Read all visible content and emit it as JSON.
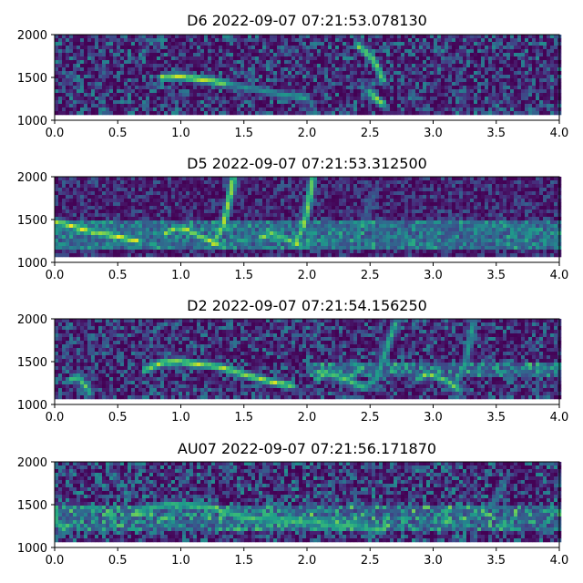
{
  "figure": {
    "background": "#ffffff"
  },
  "chart_data": [
    {
      "type": "heatmap",
      "title": "D6 2022-09-07 07:21:53.078130",
      "colormap": "viridis",
      "xlim": [
        0.0,
        4.0
      ],
      "ylim": [
        1000,
        2000
      ],
      "data_extent_y": [
        1100,
        2000
      ],
      "x_ticks": [
        0.0,
        0.5,
        1.0,
        1.5,
        2.0,
        2.5,
        3.0,
        3.5,
        4.0
      ],
      "x_tick_labels": [
        "0.0",
        "0.5",
        "1.0",
        "1.5",
        "2.0",
        "2.5",
        "3.0",
        "3.5",
        "4.0"
      ],
      "y_ticks": [
        1000,
        1500,
        2000
      ],
      "y_tick_labels": [
        "1000",
        "1500",
        "2000"
      ],
      "noise_level": 0.3,
      "band": null,
      "curves": [
        {
          "points": [
            [
              0.85,
              1500
            ],
            [
              1.0,
              1510
            ],
            [
              1.2,
              1470
            ],
            [
              1.35,
              1430
            ]
          ],
          "intensity": 0.95
        },
        {
          "points": [
            [
              1.35,
              1430
            ],
            [
              1.7,
              1330
            ],
            [
              2.0,
              1250
            ]
          ],
          "intensity": 0.55
        },
        {
          "points": [
            [
              2.4,
              1880
            ],
            [
              2.52,
              1720
            ],
            [
              2.58,
              1550
            ],
            [
              2.6,
              1470
            ]
          ],
          "intensity": 0.85
        },
        {
          "points": [
            [
              2.5,
              1320
            ],
            [
              2.55,
              1250
            ],
            [
              2.6,
              1190
            ]
          ],
          "intensity": 0.9
        }
      ]
    },
    {
      "type": "heatmap",
      "title": "D5 2022-09-07 07:21:53.312500",
      "colormap": "viridis",
      "xlim": [
        0.0,
        4.0
      ],
      "ylim": [
        1000,
        2000
      ],
      "data_extent_y": [
        1100,
        2000
      ],
      "x_ticks": [
        0.0,
        0.5,
        1.0,
        1.5,
        2.0,
        2.5,
        3.0,
        3.5,
        4.0
      ],
      "x_tick_labels": [
        "0.0",
        "0.5",
        "1.0",
        "1.5",
        "2.0",
        "2.5",
        "3.0",
        "3.5",
        "4.0"
      ],
      "y_ticks": [
        1000,
        1500,
        2000
      ],
      "y_tick_labels": [
        "1000",
        "1500",
        "2000"
      ],
      "noise_level": 0.2,
      "band": {
        "x": [
          0.0,
          4.0
        ],
        "y": [
          1150,
          1500
        ],
        "intensity": 0.3
      },
      "curves": [
        {
          "points": [
            [
              0.0,
              1470
            ],
            [
              0.1,
              1440
            ],
            [
              0.25,
              1370
            ],
            [
              0.5,
              1300
            ],
            [
              0.65,
              1250
            ]
          ],
          "intensity": 0.95
        },
        {
          "points": [
            [
              0.88,
              1330
            ],
            [
              0.95,
              1400
            ],
            [
              1.05,
              1380
            ],
            [
              1.2,
              1270
            ],
            [
              1.3,
              1210
            ]
          ],
          "intensity": 0.9
        },
        {
          "points": [
            [
              1.25,
              1210
            ],
            [
              1.33,
              1400
            ],
            [
              1.38,
              1700
            ],
            [
              1.42,
              2000
            ]
          ],
          "intensity": 0.9
        },
        {
          "points": [
            [
              1.63,
              1280
            ],
            [
              1.72,
              1340
            ],
            [
              1.85,
              1260
            ],
            [
              1.95,
              1190
            ]
          ],
          "intensity": 0.85
        },
        {
          "points": [
            [
              1.9,
              1200
            ],
            [
              1.98,
              1450
            ],
            [
              2.02,
              1750
            ],
            [
              2.05,
              2000
            ]
          ],
          "intensity": 0.85
        },
        {
          "points": [
            [
              2.45,
              1500
            ],
            [
              2.5,
              1700
            ],
            [
              2.55,
              1850
            ]
          ],
          "intensity": 0.35
        },
        {
          "points": [
            [
              3.25,
              1200
            ],
            [
              3.28,
              1400
            ],
            [
              3.3,
              1500
            ]
          ],
          "intensity": 0.35
        }
      ]
    },
    {
      "type": "heatmap",
      "title": "D2 2022-09-07 07:21:54.156250",
      "colormap": "viridis",
      "xlim": [
        0.0,
        4.0
      ],
      "ylim": [
        1000,
        2000
      ],
      "data_extent_y": [
        1100,
        2000
      ],
      "x_ticks": [
        0.0,
        0.5,
        1.0,
        1.5,
        2.0,
        2.5,
        3.0,
        3.5,
        4.0
      ],
      "x_tick_labels": [
        "0.0",
        "0.5",
        "1.0",
        "1.5",
        "2.0",
        "2.5",
        "3.0",
        "3.5",
        "4.0"
      ],
      "y_ticks": [
        1000,
        1500,
        2000
      ],
      "y_tick_labels": [
        "1000",
        "1500",
        "2000"
      ],
      "noise_level": 0.28,
      "band": {
        "x": [
          2.0,
          4.0
        ],
        "y": [
          1300,
          1500
        ],
        "intensity": 0.25
      },
      "curves": [
        {
          "points": [
            [
              0.12,
              1280
            ],
            [
              0.18,
              1330
            ],
            [
              0.25,
              1200
            ],
            [
              0.28,
              1130
            ]
          ],
          "intensity": 0.75
        },
        {
          "points": [
            [
              0.72,
              1400
            ],
            [
              0.85,
              1490
            ],
            [
              1.0,
              1500
            ],
            [
              1.3,
              1440
            ],
            [
              1.5,
              1350
            ],
            [
              1.7,
              1270
            ],
            [
              1.88,
              1220
            ]
          ],
          "intensity": 0.9
        },
        {
          "points": [
            [
              2.08,
              1300
            ],
            [
              2.15,
              1370
            ],
            [
              2.3,
              1300
            ],
            [
              2.45,
              1200
            ]
          ],
          "intensity": 0.8
        },
        {
          "points": [
            [
              2.45,
              1200
            ],
            [
              2.55,
              1300
            ],
            [
              2.62,
              1600
            ],
            [
              2.7,
              1950
            ]
          ],
          "intensity": 0.65
        },
        {
          "points": [
            [
              2.88,
              1300
            ],
            [
              2.95,
              1360
            ],
            [
              3.1,
              1280
            ],
            [
              3.2,
              1180
            ]
          ],
          "intensity": 0.8
        },
        {
          "points": [
            [
              3.15,
              1200
            ],
            [
              3.25,
              1450
            ],
            [
              3.32,
              1950
            ]
          ],
          "intensity": 0.6
        }
      ]
    },
    {
      "type": "heatmap",
      "title": "AU07 2022-09-07 07:21:56.171870",
      "colormap": "viridis",
      "xlim": [
        0.0,
        4.0
      ],
      "ylim": [
        1000,
        2000
      ],
      "data_extent_y": [
        1100,
        2000
      ],
      "x_ticks": [
        0.0,
        0.5,
        1.0,
        1.5,
        2.0,
        2.5,
        3.0,
        3.5,
        4.0
      ],
      "x_tick_labels": [
        "0.0",
        "0.5",
        "1.0",
        "1.5",
        "2.0",
        "2.5",
        "3.0",
        "3.5",
        "4.0"
      ],
      "y_ticks": [
        1000,
        1500,
        2000
      ],
      "y_tick_labels": [
        "1000",
        "1500",
        "2000"
      ],
      "noise_level": 0.32,
      "band": {
        "x": [
          0.0,
          4.0
        ],
        "y": [
          1200,
          1480
        ],
        "intensity": 0.25
      },
      "curves": [
        {
          "points": [
            [
              0.0,
              1330
            ],
            [
              0.05,
              1250
            ],
            [
              0.08,
              1200
            ]
          ],
          "intensity": 0.7
        },
        {
          "points": [
            [
              0.65,
              1430
            ],
            [
              0.9,
              1500
            ],
            [
              1.2,
              1480
            ],
            [
              1.5,
              1350
            ],
            [
              1.9,
              1300
            ],
            [
              2.3,
              1260
            ],
            [
              2.6,
              1200
            ]
          ],
          "intensity": 0.75
        },
        {
          "points": [
            [
              1.2,
              1480
            ],
            [
              1.6,
              1350
            ],
            [
              2.0,
              1330
            ],
            [
              2.4,
              1310
            ]
          ],
          "intensity": 0.55
        },
        {
          "points": [
            [
              3.1,
              1300
            ],
            [
              3.2,
              1260
            ],
            [
              3.3,
              1350
            ],
            [
              3.45,
              1480
            ],
            [
              3.5,
              1560
            ]
          ],
          "intensity": 0.45
        },
        {
          "points": [
            [
              3.5,
              1600
            ],
            [
              3.58,
              1800
            ]
          ],
          "intensity": 0.35
        }
      ]
    }
  ]
}
